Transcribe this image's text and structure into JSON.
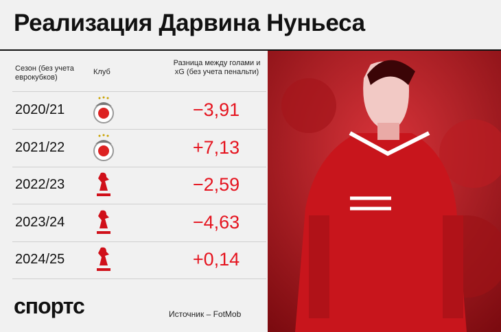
{
  "header": {
    "title": "Реализация Дарвина Нуньеса"
  },
  "table": {
    "columns": [
      "Сезон (без учета еврокубков)",
      "Клуб",
      "Разница между голами и xG (без учета пенальти)"
    ],
    "rows": [
      {
        "season": "2020/21",
        "club": "benfica",
        "value": "−3,91"
      },
      {
        "season": "2021/22",
        "club": "benfica",
        "value": "+7,13"
      },
      {
        "season": "2022/23",
        "club": "liverpool",
        "value": "−2,59"
      },
      {
        "season": "2023/24",
        "club": "liverpool",
        "value": "−4,63"
      },
      {
        "season": "2024/25",
        "club": "liverpool",
        "value": "+0,14"
      }
    ]
  },
  "footer": {
    "brand": "спортс",
    "source": "Источник – FotMob"
  }
}
